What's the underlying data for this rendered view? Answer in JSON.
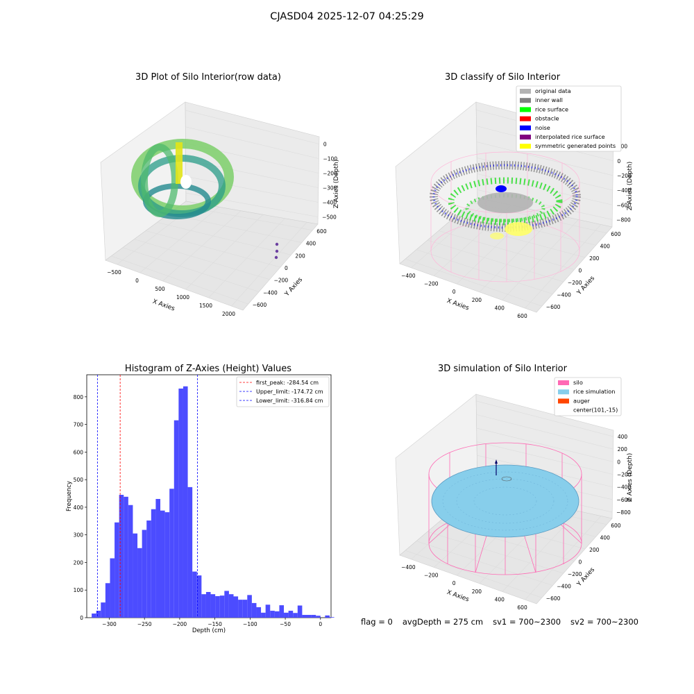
{
  "suptitle": "CJASD04 2025-12-07 04:25:29",
  "footer": {
    "flag": "flag = 0",
    "avg": "avgDepth = 275 cm",
    "sv1": "sv1 = 700~2300",
    "sv2": "sv2 = 700~2300"
  },
  "panel_raw": {
    "title": "3D Plot of Silo Interior(row data)",
    "xlabel": "X Axies",
    "ylabel": "Y Axies",
    "zlabel": "Z Axies (Depth)",
    "x_ticks": [
      "-500",
      "0",
      "500",
      "1000",
      "1500",
      "2000"
    ],
    "y_ticks": [
      "-600",
      "-400",
      "-200",
      "0",
      "200",
      "400",
      "600"
    ],
    "z_ticks": [
      "0",
      "-100",
      "-200",
      "-300",
      "-400",
      "-500"
    ]
  },
  "panel_class": {
    "title": "3D classify of Silo Interior",
    "xlabel": "X Axies",
    "ylabel": "Y Axies",
    "zlabel": "Z Axies (Depth)",
    "x_ticks": [
      "-400",
      "-200",
      "0",
      "200",
      "400",
      "600"
    ],
    "y_ticks": [
      "-600",
      "-400",
      "-200",
      "0",
      "200",
      "400",
      "600"
    ],
    "z_ticks": [
      "200",
      "0",
      "-200",
      "-400",
      "-600",
      "-800"
    ],
    "legend": [
      {
        "label": "original data",
        "color": "#b3b3b3"
      },
      {
        "label": "inner wall",
        "color": "#808080"
      },
      {
        "label": "rice surface",
        "color": "#00ff00"
      },
      {
        "label": "obstacle",
        "color": "#ff0000"
      },
      {
        "label": "noise",
        "color": "#0000ff"
      },
      {
        "label": "interpolated rice surface",
        "color": "#800080"
      },
      {
        "label": "symmetric generated points",
        "color": "#ffff00"
      }
    ]
  },
  "panel_sim": {
    "title": "3D simulation of Silo Interior",
    "xlabel": "X Axies",
    "ylabel": "Y Axies",
    "zlabel": "Z Axies (Depth)",
    "x_ticks": [
      "-400",
      "-200",
      "0",
      "200",
      "400",
      "600"
    ],
    "y_ticks": [
      "-600",
      "-400",
      "-200",
      "0",
      "200",
      "400",
      "600"
    ],
    "z_ticks": [
      "400",
      "200",
      "0",
      "-200",
      "-400",
      "-600",
      "-800"
    ],
    "legend": [
      {
        "label": "silo",
        "color": "#ff69b4"
      },
      {
        "label": "rice simulation",
        "color": "#87ceeb"
      },
      {
        "label": "auger",
        "color": "#ff4500"
      },
      {
        "label": "center(101,-15)",
        "color": ""
      }
    ]
  },
  "chart_data": {
    "type": "bar",
    "title": "Histogram of Z-Axies (Height) Values",
    "xlabel": "Depth (cm)",
    "ylabel": "Frequency",
    "xlim": [
      -332,
      15
    ],
    "ylim": [
      0,
      880
    ],
    "x_ticks": [
      -300,
      -250,
      -200,
      -150,
      -100,
      -50,
      0
    ],
    "y_ticks": [
      0,
      100,
      200,
      300,
      400,
      500,
      600,
      700,
      800
    ],
    "bar_color": "#4c4cff",
    "bin_start": -325,
    "bin_width": 6.5,
    "values": [
      15,
      25,
      55,
      125,
      215,
      345,
      445,
      438,
      408,
      305,
      252,
      318,
      352,
      393,
      430,
      388,
      382,
      467,
      715,
      830,
      838,
      473,
      167,
      153,
      85,
      93,
      85,
      78,
      80,
      97,
      85,
      77,
      65,
      65,
      82,
      53,
      38,
      18,
      47,
      25,
      23,
      45,
      18,
      25,
      17,
      44,
      10,
      10,
      10,
      7,
      0,
      8,
      2
    ],
    "vlines": [
      {
        "label": "first_peak: -284.54 cm",
        "x": -284.54,
        "color": "#ff0000"
      },
      {
        "label": "Upper_limit: -174.72 cm",
        "x": -174.72,
        "color": "#0000ff"
      },
      {
        "label": "Lower_limit: -316.84 cm",
        "x": -316.84,
        "color": "#0000ff"
      }
    ]
  }
}
